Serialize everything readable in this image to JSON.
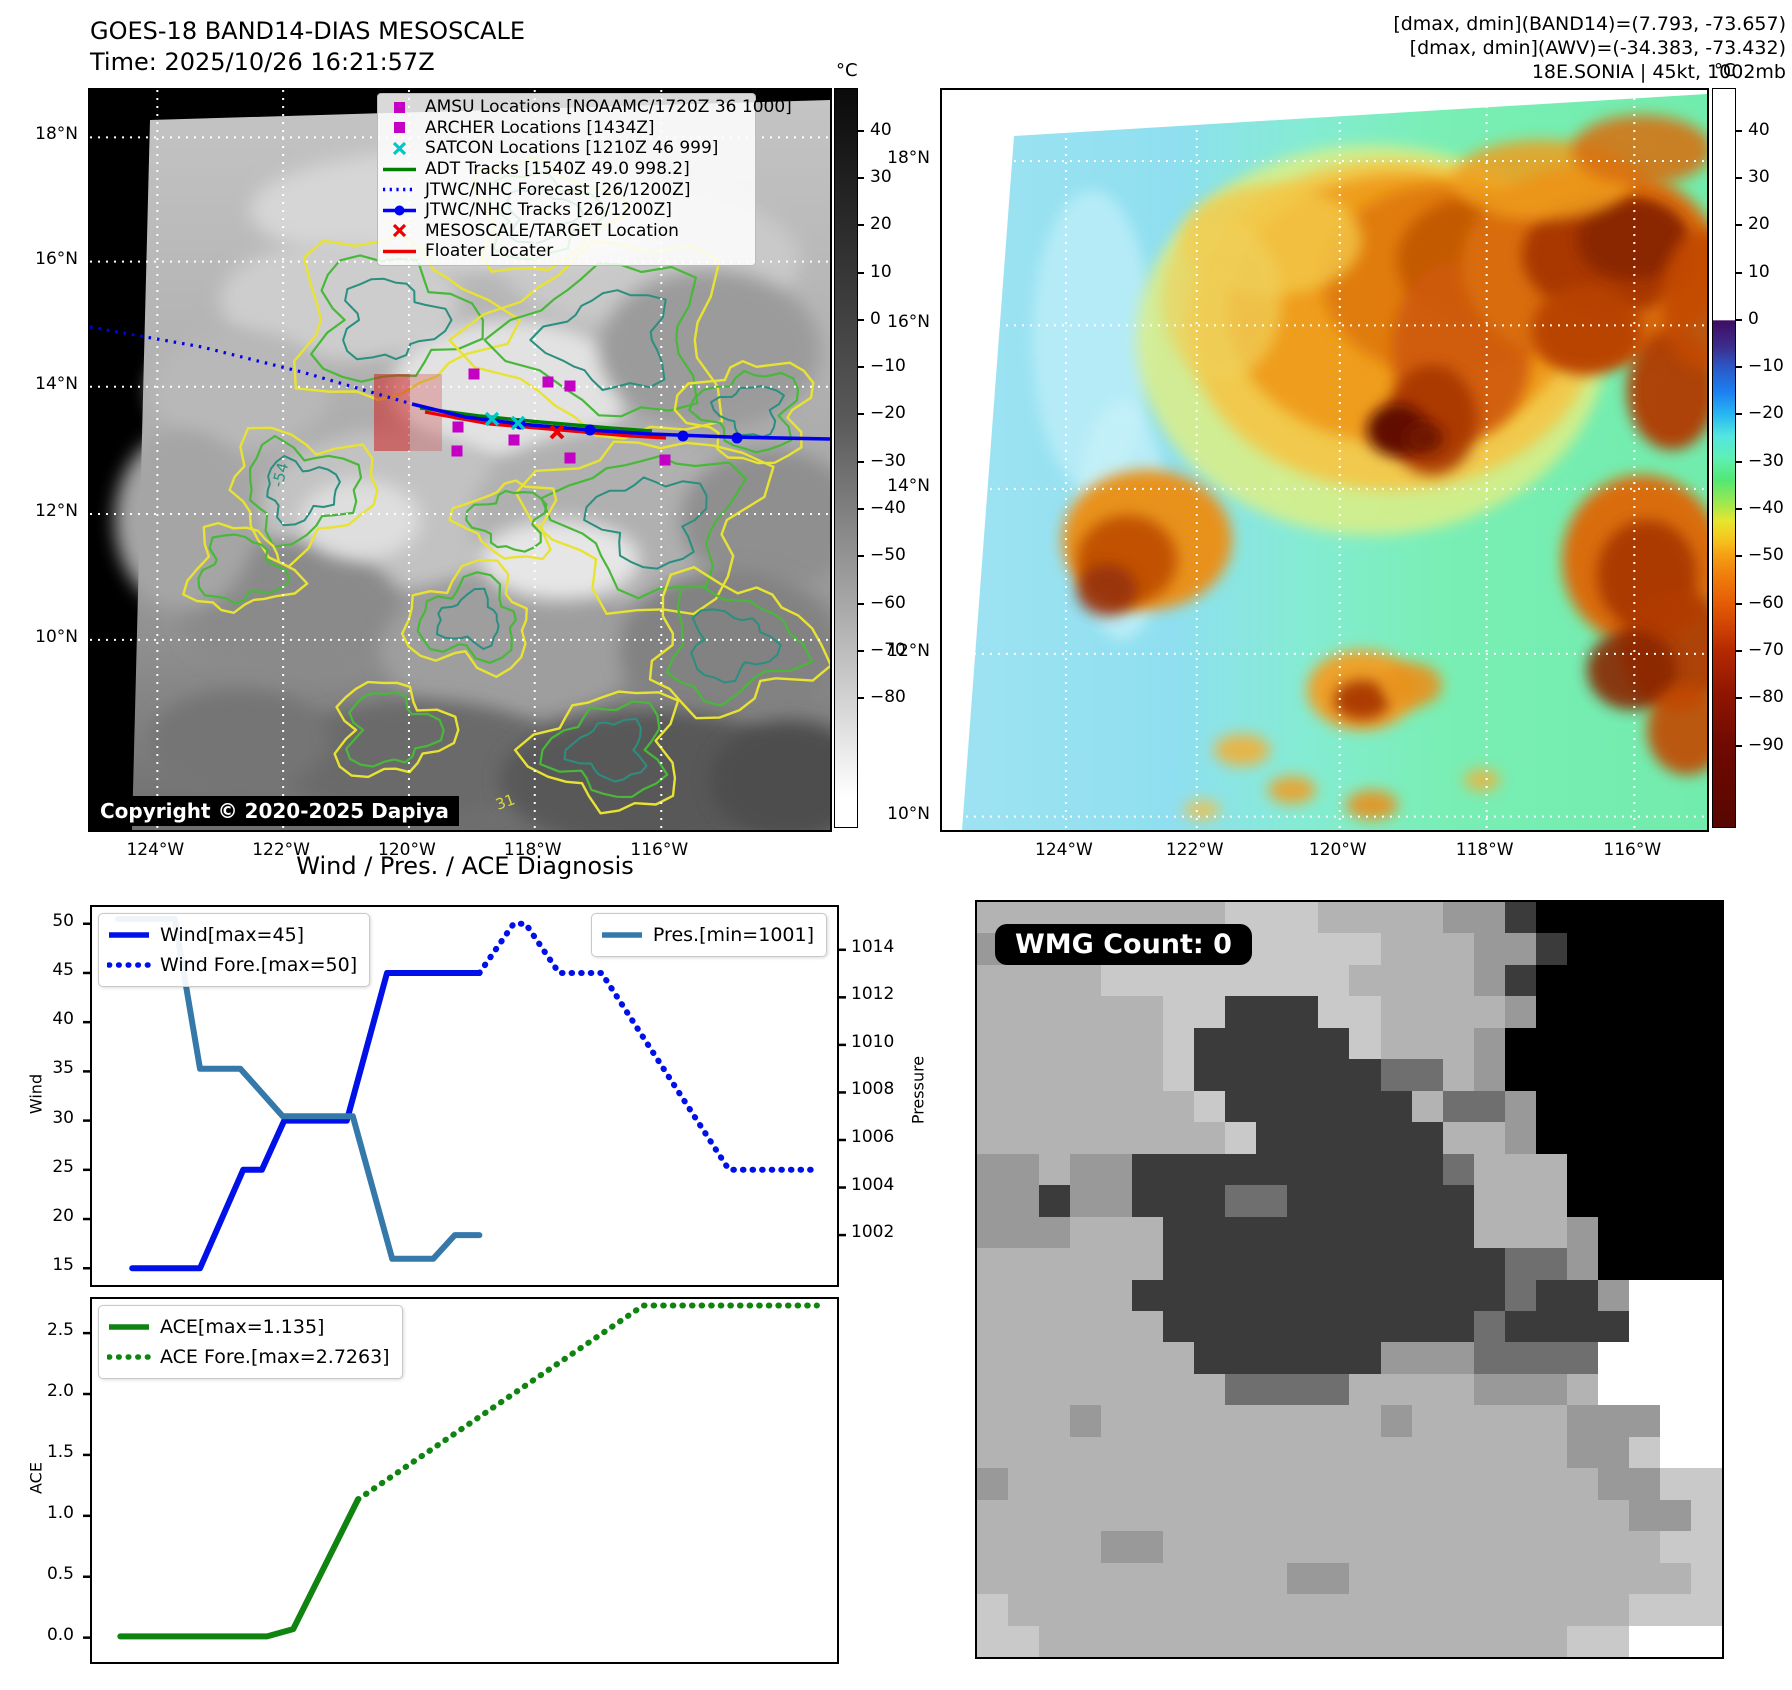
{
  "panel1": {
    "title_line1": "GOES-18 BAND14-DIAS MESOSCALE",
    "title_line2": "Time: 2025/10/26 16:21:57Z",
    "copyright": "Copyright © 2020-2025 Dapiya",
    "legend": [
      {
        "label": "AMSU Locations [NOAAMC/1720Z 36 1000]",
        "marker": "square",
        "color": "#c400c4"
      },
      {
        "label": "ARCHER Locations [1434Z]",
        "marker": "square",
        "color": "#c400c4"
      },
      {
        "label": "SATCON Locations [1210Z 46 999]",
        "marker": "x",
        "color": "#00c8c8"
      },
      {
        "label": "ADT Tracks [1540Z 49.0 998.2]",
        "marker": "line",
        "color": "#008000"
      },
      {
        "label": "JTWC/NHC Forecast [26/1200Z]",
        "marker": "dotted",
        "color": "#0000ff"
      },
      {
        "label": "JTWC/NHC Tracks [26/1200Z]",
        "marker": "line-dot",
        "color": "#0000ff"
      },
      {
        "label": "MESOSCALE/TARGET Location",
        "marker": "x",
        "color": "#ee0000"
      },
      {
        "label": "Floater Locater",
        "marker": "line",
        "color": "#ee0000"
      }
    ],
    "x_ticks": [
      {
        "label": "124°W",
        "f": 0.091
      },
      {
        "label": "122°W",
        "f": 0.261
      },
      {
        "label": "120°W",
        "f": 0.431
      },
      {
        "label": "118°W",
        "f": 0.601
      },
      {
        "label": "116°W",
        "f": 0.772
      }
    ],
    "y_ticks": [
      {
        "label": "18°N",
        "f": 0.064
      },
      {
        "label": "16°N",
        "f": 0.232
      },
      {
        "label": "14°N",
        "f": 0.401
      },
      {
        "label": "12°N",
        "f": 0.573
      },
      {
        "label": "10°N",
        "f": 0.743
      }
    ],
    "colorbar": {
      "unit": "°C",
      "range": [
        49,
        -107
      ],
      "ticks": [
        40,
        30,
        20,
        10,
        0,
        -10,
        -20,
        -30,
        -40,
        -50,
        -60,
        -70,
        -80
      ]
    },
    "contour_labels": [
      {
        "text": "-54"
      },
      {
        "text": "31"
      }
    ]
  },
  "panel2": {
    "header_line1": "[dmax, dmin](BAND14)=(7.793, -73.657)",
    "header_line2": "[dmax, dmin](AWV)=(-34.383, -73.432)",
    "header_line3": "18E.SONIA | 45kt, 1002mb",
    "x_ticks": [
      {
        "label": "124°W",
        "f": 0.162
      },
      {
        "label": "122°W",
        "f": 0.333
      },
      {
        "label": "120°W",
        "f": 0.52
      },
      {
        "label": "118°W",
        "f": 0.712
      },
      {
        "label": "116°W",
        "f": 0.905
      }
    ],
    "y_ticks": [
      {
        "label": "18°N",
        "f": 0.096
      },
      {
        "label": "16°N",
        "f": 0.318
      },
      {
        "label": "14°N",
        "f": 0.539
      },
      {
        "label": "12°N",
        "f": 0.762
      },
      {
        "label": "10°N",
        "f": 0.982
      }
    ],
    "colorbar": {
      "unit": "°C",
      "range": [
        49,
        -107
      ],
      "ticks": [
        40,
        30,
        20,
        10,
        0,
        -10,
        -20,
        -30,
        -40,
        -50,
        -60,
        -70,
        -80,
        -90
      ]
    }
  },
  "charts": {
    "title": "Wind / Pres. / ACE Diagnosis"
  },
  "chart_data": [
    {
      "type": "line",
      "panel": "wind",
      "title": "Wind / Pres. / ACE Diagnosis",
      "ylabel_left": "Wind",
      "ylabel_right": "Pressure",
      "yticks_left": [
        15,
        20,
        25,
        30,
        35,
        40,
        45,
        50
      ],
      "ylim_left": [
        13.3,
        51.7
      ],
      "yticks_right": [
        1002,
        1004,
        1006,
        1008,
        1010,
        1012,
        1014
      ],
      "ylim_right": [
        999.9,
        1015.8
      ],
      "series": [
        {
          "name": "Wind[max=45]",
          "axis": "left",
          "style": "solid",
          "color": "#0010e8",
          "width": 6,
          "points": [
            [
              0.054,
              15
            ],
            [
              0.145,
              15
            ],
            [
              0.203,
              25
            ],
            [
              0.228,
              25
            ],
            [
              0.258,
              30
            ],
            [
              0.342,
              30
            ],
            [
              0.396,
              45
            ],
            [
              0.52,
              45
            ]
          ]
        },
        {
          "name": "Wind Fore.[max=50]",
          "axis": "left",
          "style": "dotted",
          "color": "#0010e8",
          "width": 6,
          "points": [
            [
              0.52,
              45
            ],
            [
              0.566,
              50
            ],
            [
              0.582,
              50
            ],
            [
              0.627,
              45
            ],
            [
              0.684,
              45
            ],
            [
              0.855,
              25
            ],
            [
              0.966,
              25
            ]
          ]
        },
        {
          "name": "Pres.[min=1001]",
          "axis": "right",
          "style": "solid",
          "color": "#3579ab",
          "width": 6,
          "points": [
            [
              0.035,
              1015.3
            ],
            [
              0.111,
              1015.3
            ],
            [
              0.145,
              1009
            ],
            [
              0.199,
              1009
            ],
            [
              0.256,
              1007
            ],
            [
              0.35,
              1007
            ],
            [
              0.403,
              1001
            ],
            [
              0.458,
              1001
            ],
            [
              0.487,
              1002
            ],
            [
              0.52,
              1002
            ]
          ]
        }
      ],
      "legends": [
        {
          "pos": "top-left",
          "items": [
            "Wind[max=45]",
            "Wind Fore.[max=50]"
          ]
        },
        {
          "pos": "top-right",
          "items": [
            "Pres.[min=1001]"
          ]
        }
      ]
    },
    {
      "type": "line",
      "panel": "ace",
      "ylabel_left": "ACE",
      "yticks_left": [
        "0.0",
        "0.5",
        "1.0",
        "1.5",
        "2.0",
        "2.5"
      ],
      "ylim_left": [
        -0.2,
        2.78
      ],
      "series": [
        {
          "name": "ACE[max=1.135]",
          "axis": "left",
          "style": "solid",
          "color": "#108410",
          "width": 6,
          "points": [
            [
              0.038,
              0.01
            ],
            [
              0.235,
              0.01
            ],
            [
              0.27,
              0.07
            ],
            [
              0.357,
              1.135
            ]
          ]
        },
        {
          "name": "ACE Fore.[max=2.7263]",
          "axis": "left",
          "style": "dotted",
          "color": "#108410",
          "width": 6,
          "points": [
            [
              0.357,
              1.135
            ],
            [
              0.74,
              2.7263
            ],
            [
              0.973,
              2.7263
            ]
          ]
        }
      ],
      "legends": [
        {
          "pos": "top-left",
          "items": [
            "ACE[max=1.135]",
            "ACE Fore.[max=2.7263]"
          ]
        }
      ]
    }
  ],
  "panel4": {
    "badge": "WMG Count: 0",
    "palette": {
      "0": "#000000",
      "2": "#3b3b3b",
      "4": "#6f6f6f",
      "6": "#999999",
      "7": "#b3b3b3",
      "8": "#c9c9c9",
      "9": "#ffffff"
    },
    "pixel_rows": [
      "777777778887777662000000",
      "677777788888877766200000",
      "777788888888777762000000",
      "777777882228877776000000",
      "777777822222877760000000",
      "777777822222244760000000",
      "777777782222227446000000",
      "777777778222222776000000",
      "667662222222222477700000",
      "662662224422222277700000",
      "666777222222222277760000",
      "777777222222222224460000",
      "777772222222222224226999",
      "777777222222222242222999",
      "777777722222266644449999",
      "777777774444777766679999",
      "777677777777767777766699",
      "777777777777777777766899",
      "677777777777777777776688",
      "777777777777777777777668",
      "777766777777777777777788",
      "777777777766777777777778",
      "877777777777777777777888",
      "887777777777777777788999"
    ]
  }
}
